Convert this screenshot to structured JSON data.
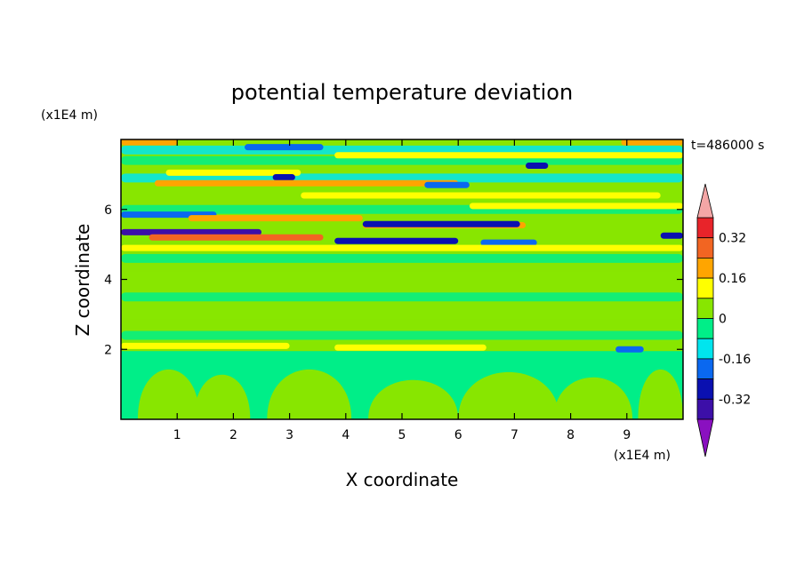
{
  "chart_data": {
    "type": "heatmap",
    "title": "potential temperature deviation",
    "xlabel": "X coordinate",
    "ylabel": "Z coordinate",
    "x_unit": "(x1E4 m)",
    "y_unit": "(x1E4 m)",
    "time_label": "t=486000 s",
    "xlim": [
      0,
      10
    ],
    "ylim": [
      0,
      8
    ],
    "x_ticks": [
      "1",
      "2",
      "3",
      "4",
      "5",
      "6",
      "7",
      "8",
      "9"
    ],
    "y_ticks": [
      "2",
      "4",
      "6"
    ],
    "colorbar": {
      "labels": [
        "0.32",
        "0.16",
        "0",
        "-0.16",
        "-0.32"
      ],
      "label_values": [
        0.32,
        0.16,
        0,
        -0.16,
        -0.32
      ],
      "levels": [
        {
          "lo": 0.4,
          "hi": null,
          "color": "#f4a6a6"
        },
        {
          "lo": 0.32,
          "hi": 0.4,
          "color": "#e8242a"
        },
        {
          "lo": 0.24,
          "hi": 0.32,
          "color": "#f26522"
        },
        {
          "lo": 0.16,
          "hi": 0.24,
          "color": "#ffa500"
        },
        {
          "lo": 0.08,
          "hi": 0.16,
          "color": "#ffff00"
        },
        {
          "lo": 0.0,
          "hi": 0.08,
          "color": "#88e600"
        },
        {
          "lo": -0.08,
          "hi": 0.0,
          "color": "#00ee88"
        },
        {
          "lo": -0.16,
          "hi": -0.08,
          "color": "#00e5ee"
        },
        {
          "lo": -0.24,
          "hi": -0.16,
          "color": "#0a68f0"
        },
        {
          "lo": -0.32,
          "hi": -0.24,
          "color": "#0a10b0"
        },
        {
          "lo": -0.4,
          "hi": -0.32,
          "color": "#3c0fa8"
        },
        {
          "lo": null,
          "hi": -0.4,
          "color": "#8a10c0"
        }
      ]
    },
    "bands": [
      {
        "z": 7.92,
        "x0": 0.0,
        "x1": 1.0,
        "level": 3
      },
      {
        "z": 7.92,
        "x0": 8.9,
        "x1": 10.0,
        "level": 3
      },
      {
        "z": 7.78,
        "x0": 2.2,
        "x1": 3.6,
        "level": 8
      },
      {
        "z": 7.55,
        "x0": 3.8,
        "x1": 10.0,
        "level": 4
      },
      {
        "z": 7.25,
        "x0": 7.2,
        "x1": 7.6,
        "level": 9
      },
      {
        "z": 7.05,
        "x0": 0.8,
        "x1": 3.2,
        "level": 4
      },
      {
        "z": 6.92,
        "x0": 2.7,
        "x1": 3.1,
        "level": 9
      },
      {
        "z": 6.75,
        "x0": 0.6,
        "x1": 6.0,
        "level": 3
      },
      {
        "z": 6.7,
        "x0": 5.4,
        "x1": 6.2,
        "level": 8
      },
      {
        "z": 6.4,
        "x0": 3.2,
        "x1": 9.6,
        "level": 4
      },
      {
        "z": 6.1,
        "x0": 6.2,
        "x1": 10.0,
        "level": 4
      },
      {
        "z": 5.85,
        "x0": 0.0,
        "x1": 1.7,
        "level": 8
      },
      {
        "z": 5.75,
        "x0": 1.2,
        "x1": 4.3,
        "level": 3
      },
      {
        "z": 5.55,
        "x0": 4.3,
        "x1": 7.2,
        "level": 3
      },
      {
        "z": 5.58,
        "x0": 4.3,
        "x1": 7.1,
        "level": 9
      },
      {
        "z": 5.35,
        "x0": 0.0,
        "x1": 2.5,
        "level": 10
      },
      {
        "z": 5.2,
        "x0": 0.5,
        "x1": 3.6,
        "level": 2
      },
      {
        "z": 5.25,
        "x0": 9.6,
        "x1": 10.0,
        "level": 9
      },
      {
        "z": 5.1,
        "x0": 3.8,
        "x1": 6.0,
        "level": 9
      },
      {
        "z": 5.05,
        "x0": 6.4,
        "x1": 7.4,
        "level": 8
      },
      {
        "z": 4.9,
        "x0": 0.0,
        "x1": 10.0,
        "level": 4
      },
      {
        "z": 2.1,
        "x0": 0.0,
        "x1": 3.0,
        "level": 4
      },
      {
        "z": 2.05,
        "x0": 3.8,
        "x1": 6.5,
        "level": 4
      },
      {
        "z": 2.0,
        "x0": 8.8,
        "x1": 9.3,
        "level": 8
      }
    ]
  }
}
